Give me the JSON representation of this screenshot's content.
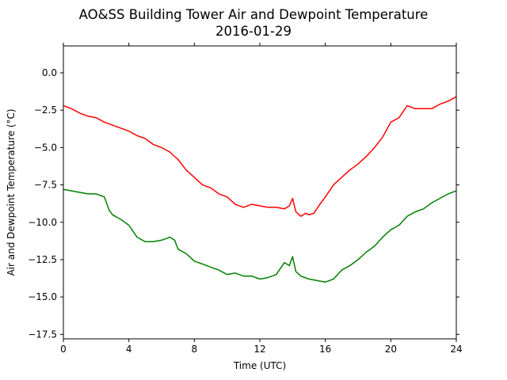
{
  "chart_data": {
    "type": "line",
    "title": "AO&SS Building Tower Air and Dewpoint Temperature",
    "subtitle": "2016-01-29",
    "xlabel": "Time (UTC)",
    "ylabel": "Air and Dewpoint Temperature (°C)",
    "xlim": [
      0,
      24
    ],
    "ylim": [
      -17.8,
      1.8
    ],
    "xticks": [
      0,
      4,
      8,
      12,
      16,
      20,
      24
    ],
    "yticks": [
      0.0,
      -2.5,
      -5.0,
      -7.5,
      -10.0,
      -12.5,
      -15.0,
      -17.5
    ],
    "ytick_labels": [
      "0.0",
      "−2.5",
      "−5.0",
      "−7.5",
      "−10.0",
      "−12.5",
      "−15.0",
      "−17.5"
    ],
    "grid": false,
    "series": [
      {
        "color": "#ff0000",
        "x": [
          0,
          0.5,
          1,
          1.5,
          2,
          2.5,
          3,
          3.5,
          4,
          4.5,
          5,
          5.5,
          6,
          6.5,
          7,
          7.5,
          8,
          8.5,
          9,
          9.5,
          10,
          10.5,
          11,
          11.5,
          12,
          12.5,
          13,
          13.5,
          13.8,
          14,
          14.2,
          14.5,
          14.8,
          15,
          15.3,
          15.6,
          16,
          16.5,
          17,
          17.5,
          18,
          18.5,
          19,
          19.5,
          20,
          20.5,
          21,
          21.5,
          22,
          22.5,
          23,
          23.5,
          24
        ],
        "y": [
          -2.2,
          -2.4,
          -2.7,
          -2.9,
          -3.0,
          -3.3,
          -3.5,
          -3.7,
          -3.9,
          -4.2,
          -4.4,
          -4.8,
          -5.0,
          -5.3,
          -5.8,
          -6.5,
          -7.0,
          -7.5,
          -7.7,
          -8.1,
          -8.3,
          -8.8,
          -9.0,
          -8.8,
          -8.9,
          -9.0,
          -9.0,
          -9.1,
          -8.9,
          -8.4,
          -9.3,
          -9.6,
          -9.4,
          -9.5,
          -9.4,
          -8.9,
          -8.3,
          -7.5,
          -7.0,
          -6.5,
          -6.1,
          -5.6,
          -5.0,
          -4.3,
          -3.3,
          -3.0,
          -2.2,
          -2.4,
          -2.4,
          -2.4,
          -2.1,
          -1.9,
          -1.6
        ]
      },
      {
        "color": "#008000",
        "x": [
          0,
          0.5,
          1,
          1.5,
          2,
          2.5,
          2.8,
          3,
          3.5,
          4,
          4.5,
          5,
          5.5,
          6,
          6.5,
          6.8,
          7,
          7.5,
          8,
          8.5,
          9,
          9.5,
          10,
          10.5,
          11,
          11.5,
          12,
          12.5,
          13,
          13.5,
          13.8,
          14,
          14.2,
          14.5,
          15,
          15.5,
          16,
          16.5,
          17,
          17.5,
          18,
          18.5,
          19,
          19.5,
          20,
          20.5,
          21,
          21.5,
          22,
          22.5,
          23,
          23.5,
          24
        ],
        "y": [
          -7.8,
          -7.9,
          -8.0,
          -8.1,
          -8.1,
          -8.3,
          -9.2,
          -9.5,
          -9.8,
          -10.2,
          -11.0,
          -11.3,
          -11.3,
          -11.2,
          -11.0,
          -11.2,
          -11.8,
          -12.1,
          -12.6,
          -12.8,
          -13.0,
          -13.2,
          -13.5,
          -13.4,
          -13.6,
          -13.6,
          -13.8,
          -13.7,
          -13.5,
          -12.7,
          -12.9,
          -12.3,
          -13.3,
          -13.6,
          -13.8,
          -13.9,
          -14.0,
          -13.8,
          -13.2,
          -12.9,
          -12.5,
          -12.0,
          -11.6,
          -11.0,
          -10.5,
          -10.2,
          -9.6,
          -9.3,
          -9.1,
          -8.7,
          -8.4,
          -8.1,
          -7.9
        ]
      }
    ]
  }
}
